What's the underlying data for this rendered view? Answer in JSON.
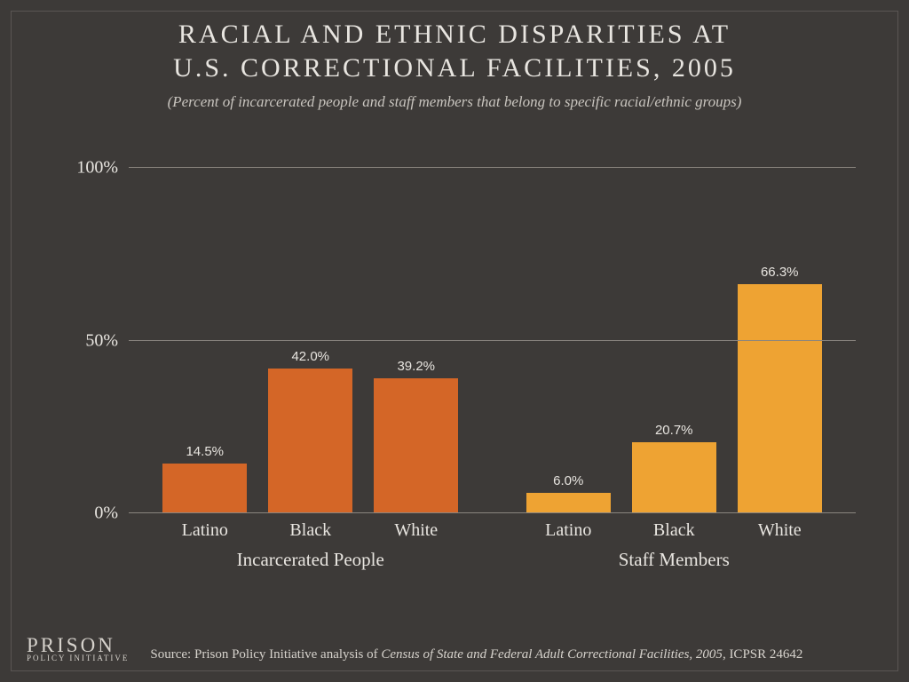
{
  "title_line1": "RACIAL AND ETHNIC DISPARITIES AT",
  "title_line2": "U.S. CORRECTIONAL FACILITIES, 2005",
  "subtitle": "(Percent of incarcerated people and staff members that belong to specific racial/ethnic groups)",
  "chart": {
    "type": "bar",
    "ylim": [
      0,
      105
    ],
    "yticks": [
      {
        "v": 0,
        "label": "0%"
      },
      {
        "v": 50,
        "label": "50%"
      },
      {
        "v": 100,
        "label": "100%"
      }
    ],
    "grid_color": "#8a857f",
    "background_color": "#3d3a38",
    "tick_fontsize": 20,
    "groups": [
      {
        "label": "Incarcerated People",
        "color": "#d46627",
        "bars": [
          {
            "cat": "Latino",
            "value": 14.5,
            "label": "14.5%"
          },
          {
            "cat": "Black",
            "value": 42.0,
            "label": "42.0%"
          },
          {
            "cat": "White",
            "value": 39.2,
            "label": "39.2%"
          }
        ]
      },
      {
        "label": "Staff Members",
        "color": "#eea333",
        "bars": [
          {
            "cat": "Latino",
            "value": 6.0,
            "label": "6.0%"
          },
          {
            "cat": "Black",
            "value": 20.7,
            "label": "20.7%"
          },
          {
            "cat": "White",
            "value": 66.3,
            "label": "66.3%"
          }
        ]
      }
    ]
  },
  "logo": {
    "big": "PRISON",
    "small": "POLICY INITIATIVE"
  },
  "source_prefix": "Source: Prison Policy Initiative analysis of ",
  "source_ital": "Census of State and Federal Adult Correctional Facilities, 2005",
  "source_suffix": ", ICPSR 24642"
}
